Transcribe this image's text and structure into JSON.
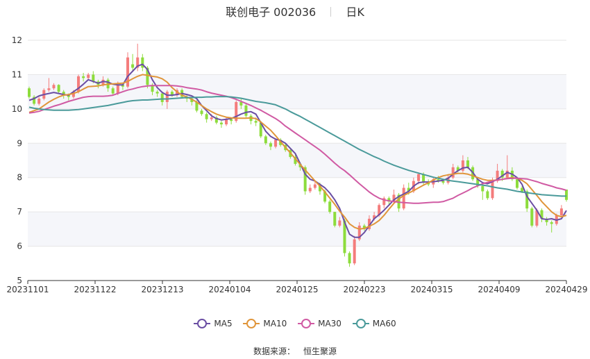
{
  "header": {
    "title": "联创电子 002036",
    "period": "日K"
  },
  "source": {
    "label": "数据来源：",
    "value": "恒生聚源"
  },
  "colors": {
    "up": "#f47c7c",
    "down": "#8ddc3c",
    "grid": "#e6e6e6",
    "bandFill": "#f5f6fa",
    "axis": "#333333"
  },
  "chart_data": {
    "type": "candlestick",
    "ylim": [
      5,
      12
    ],
    "yticks": [
      5,
      6,
      7,
      8,
      9,
      10,
      11,
      12
    ],
    "x_range": [
      "20231101",
      "20240429"
    ],
    "xticks": [
      "20231101",
      "20231122",
      "20231213",
      "20240104",
      "20240125",
      "20240223",
      "20240315",
      "20240409",
      "20240429"
    ],
    "grid": true,
    "legend_position": "bottom",
    "series": [
      {
        "name": "MA5",
        "color": "#6a4ea3",
        "values": [
          10.25,
          10.3,
          10.38,
          10.42,
          10.45,
          10.48,
          10.45,
          10.42,
          10.4,
          10.5,
          10.6,
          10.72,
          10.85,
          10.8,
          10.75,
          10.8,
          10.78,
          10.72,
          10.7,
          10.7,
          10.95,
          11.1,
          11.25,
          11.3,
          11.15,
          10.85,
          10.62,
          10.48,
          10.4,
          10.4,
          10.42,
          10.45,
          10.42,
          10.38,
          10.3,
          10.1,
          9.95,
          9.8,
          9.72,
          9.68,
          9.7,
          9.72,
          9.78,
          9.85,
          9.9,
          9.92,
          9.85,
          9.6,
          9.35,
          9.2,
          9.12,
          9.08,
          9.0,
          8.85,
          8.7,
          8.4,
          8.1,
          7.95,
          7.9,
          7.8,
          7.7,
          7.55,
          7.35,
          7.1,
          6.7,
          6.35,
          6.26,
          6.26,
          6.4,
          6.6,
          6.8,
          6.92,
          7.05,
          7.2,
          7.35,
          7.45,
          7.52,
          7.6,
          7.75,
          7.85,
          7.87,
          7.87,
          7.88,
          7.9,
          7.92,
          7.98,
          8.1,
          8.2,
          8.28,
          8.3,
          8.15,
          7.95,
          7.85,
          7.82,
          7.88,
          7.95,
          8.05,
          8.15,
          8.1,
          8.0,
          7.8,
          7.45,
          7.25,
          7.05,
          6.8,
          6.78,
          6.8,
          6.76,
          6.8,
          7.04
        ]
      },
      {
        "name": "MA10",
        "color": "#e0953a",
        "values": [
          9.9,
          9.95,
          10.0,
          10.1,
          10.2,
          10.28,
          10.35,
          10.4,
          10.42,
          10.45,
          10.5,
          10.58,
          10.65,
          10.66,
          10.67,
          10.7,
          10.72,
          10.73,
          10.74,
          10.75,
          10.8,
          10.88,
          10.95,
          11.0,
          10.98,
          10.95,
          10.93,
          10.88,
          10.78,
          10.62,
          10.5,
          10.4,
          10.35,
          10.28,
          10.2,
          10.1,
          10.0,
          9.92,
          9.85,
          9.8,
          9.76,
          9.74,
          9.73,
          9.73,
          9.73,
          9.74,
          9.72,
          9.62,
          9.5,
          9.38,
          9.22,
          9.05,
          8.88,
          8.72,
          8.55,
          8.38,
          8.22,
          8.06,
          7.9,
          7.75,
          7.58,
          7.4,
          7.22,
          7.02,
          6.85,
          6.65,
          6.55,
          6.5,
          6.52,
          6.58,
          6.65,
          6.75,
          6.9,
          7.08,
          7.25,
          7.38,
          7.48,
          7.55,
          7.62,
          7.7,
          7.78,
          7.85,
          7.93,
          8.0,
          8.05,
          8.08,
          8.1,
          8.12,
          8.12,
          8.1,
          8.05,
          8.0,
          7.95,
          7.92,
          7.92,
          7.93,
          7.95,
          7.98,
          8.0,
          7.98,
          7.92,
          7.82,
          7.65,
          7.48,
          7.3,
          7.15,
          7.0,
          6.9,
          6.86,
          6.9
        ]
      },
      {
        "name": "MA30",
        "color": "#d05aa3",
        "values": [
          9.88,
          9.9,
          9.93,
          9.98,
          10.03,
          10.08,
          10.12,
          10.17,
          10.22,
          10.26,
          10.3,
          10.34,
          10.36,
          10.37,
          10.37,
          10.37,
          10.38,
          10.4,
          10.45,
          10.5,
          10.55,
          10.58,
          10.62,
          10.65,
          10.67,
          10.68,
          10.68,
          10.68,
          10.68,
          10.68,
          10.67,
          10.65,
          10.62,
          10.6,
          10.58,
          10.55,
          10.5,
          10.46,
          10.43,
          10.4,
          10.37,
          10.33,
          10.28,
          10.22,
          10.16,
          10.1,
          10.03,
          9.96,
          9.88,
          9.8,
          9.72,
          9.62,
          9.5,
          9.4,
          9.3,
          9.2,
          9.1,
          9.0,
          8.9,
          8.8,
          8.68,
          8.55,
          8.42,
          8.3,
          8.2,
          8.08,
          7.95,
          7.82,
          7.7,
          7.58,
          7.48,
          7.4,
          7.35,
          7.32,
          7.3,
          7.28,
          7.27,
          7.26,
          7.25,
          7.25,
          7.26,
          7.27,
          7.28,
          7.28,
          7.3,
          7.35,
          7.4,
          7.48,
          7.55,
          7.62,
          7.7,
          7.76,
          7.82,
          7.86,
          7.9,
          7.93,
          7.95,
          7.97,
          7.98,
          7.98,
          7.97,
          7.96,
          7.92,
          7.88,
          7.83,
          7.79,
          7.75,
          7.7,
          7.67,
          7.63
        ]
      },
      {
        "name": "MA60",
        "color": "#4a9a9a",
        "values": [
          10.05,
          10.02,
          10.0,
          9.98,
          9.97,
          9.96,
          9.96,
          9.96,
          9.96,
          9.97,
          9.98,
          10.0,
          10.02,
          10.04,
          10.06,
          10.08,
          10.1,
          10.13,
          10.16,
          10.19,
          10.22,
          10.24,
          10.25,
          10.26,
          10.26,
          10.27,
          10.28,
          10.29,
          10.29,
          10.3,
          10.31,
          10.32,
          10.33,
          10.33,
          10.34,
          10.34,
          10.35,
          10.35,
          10.36,
          10.36,
          10.36,
          10.35,
          10.33,
          10.31,
          10.28,
          10.25,
          10.22,
          10.2,
          10.18,
          10.15,
          10.12,
          10.06,
          10.0,
          9.92,
          9.85,
          9.78,
          9.7,
          9.62,
          9.54,
          9.46,
          9.38,
          9.3,
          9.22,
          9.14,
          9.06,
          8.98,
          8.9,
          8.82,
          8.75,
          8.68,
          8.61,
          8.55,
          8.48,
          8.42,
          8.36,
          8.31,
          8.26,
          8.21,
          8.17,
          8.13,
          8.09,
          8.05,
          8.01,
          7.98,
          7.95,
          7.92,
          7.9,
          7.88,
          7.86,
          7.84,
          7.82,
          7.8,
          7.78,
          7.76,
          7.73,
          7.7,
          7.68,
          7.66,
          7.63,
          7.6,
          7.58,
          7.56,
          7.54,
          7.52,
          7.5,
          7.49,
          7.48,
          7.47,
          7.46,
          7.46
        ]
      }
    ],
    "candles": [
      [
        10.6,
        10.35,
        10.65,
        10.3
      ],
      [
        10.35,
        10.15,
        10.4,
        10.1
      ],
      [
        10.15,
        10.3,
        10.35,
        10.1
      ],
      [
        10.3,
        10.55,
        10.6,
        10.25
      ],
      [
        10.55,
        10.6,
        10.9,
        10.5
      ],
      [
        10.6,
        10.7,
        10.75,
        10.55
      ],
      [
        10.7,
        10.5,
        10.72,
        10.45
      ],
      [
        10.5,
        10.4,
        10.55,
        10.3
      ],
      [
        10.4,
        10.35,
        10.45,
        10.25
      ],
      [
        10.35,
        10.5,
        10.55,
        10.3
      ],
      [
        10.5,
        10.95,
        11.0,
        10.45
      ],
      [
        10.95,
        10.9,
        11.05,
        10.8
      ],
      [
        10.9,
        11.0,
        11.05,
        10.85
      ],
      [
        11.0,
        10.8,
        11.1,
        10.75
      ],
      [
        10.8,
        10.7,
        10.85,
        10.6
      ],
      [
        10.7,
        10.85,
        10.95,
        10.65
      ],
      [
        10.85,
        10.6,
        10.9,
        10.5
      ],
      [
        10.6,
        10.45,
        10.65,
        10.4
      ],
      [
        10.45,
        10.7,
        10.8,
        10.4
      ],
      [
        10.7,
        10.65,
        10.75,
        10.55
      ],
      [
        10.65,
        11.5,
        11.65,
        10.6
      ],
      [
        11.3,
        11.2,
        11.6,
        11.1
      ],
      [
        11.2,
        11.5,
        11.9,
        11.1
      ],
      [
        11.5,
        11.2,
        11.6,
        11.1
      ],
      [
        11.2,
        10.7,
        11.25,
        10.6
      ],
      [
        10.7,
        10.5,
        10.75,
        10.4
      ],
      [
        10.5,
        10.45,
        10.55,
        10.35
      ],
      [
        10.45,
        10.2,
        10.5,
        10.1
      ],
      [
        10.2,
        10.5,
        10.55,
        10.0
      ],
      [
        10.5,
        10.4,
        10.55,
        10.35
      ],
      [
        10.4,
        10.55,
        10.6,
        10.35
      ],
      [
        10.55,
        10.35,
        10.6,
        10.3
      ],
      [
        10.35,
        10.3,
        10.4,
        10.2
      ],
      [
        10.3,
        10.2,
        10.35,
        10.1
      ],
      [
        10.2,
        9.95,
        10.25,
        9.9
      ],
      [
        9.95,
        9.85,
        10.0,
        9.8
      ],
      [
        9.85,
        9.7,
        9.9,
        9.6
      ],
      [
        9.7,
        9.75,
        9.85,
        9.65
      ],
      [
        9.75,
        9.6,
        9.8,
        9.55
      ],
      [
        9.6,
        9.55,
        9.65,
        9.45
      ],
      [
        9.55,
        9.7,
        9.75,
        9.5
      ],
      [
        9.7,
        9.65,
        9.75,
        9.55
      ],
      [
        9.65,
        10.2,
        10.25,
        9.6
      ],
      [
        10.2,
        10.1,
        10.3,
        10.0
      ],
      [
        10.1,
        9.8,
        10.15,
        9.75
      ],
      [
        9.8,
        9.65,
        9.85,
        9.55
      ],
      [
        9.65,
        9.6,
        9.75,
        9.5
      ],
      [
        9.6,
        9.2,
        9.65,
        9.15
      ],
      [
        9.2,
        9.0,
        9.25,
        8.95
      ],
      [
        9.0,
        8.9,
        9.05,
        8.8
      ],
      [
        8.9,
        9.1,
        9.15,
        8.85
      ],
      [
        9.1,
        8.95,
        9.15,
        8.9
      ],
      [
        8.95,
        8.8,
        9.0,
        8.75
      ],
      [
        8.8,
        8.6,
        8.85,
        8.55
      ],
      [
        8.6,
        8.4,
        8.7,
        8.35
      ],
      [
        8.4,
        8.3,
        8.45,
        8.2
      ],
      [
        8.3,
        7.6,
        8.35,
        7.5
      ],
      [
        7.6,
        7.7,
        7.8,
        7.55
      ],
      [
        7.7,
        7.8,
        7.9,
        7.65
      ],
      [
        7.8,
        7.6,
        7.85,
        7.5
      ],
      [
        7.6,
        7.3,
        7.65,
        7.25
      ],
      [
        7.3,
        7.0,
        7.35,
        6.95
      ],
      [
        7.0,
        6.6,
        7.0,
        6.55
      ],
      [
        6.6,
        6.75,
        6.85,
        6.55
      ],
      [
        6.75,
        5.8,
        6.8,
        5.7
      ],
      [
        5.8,
        5.5,
        5.85,
        5.4
      ],
      [
        5.5,
        6.2,
        6.3,
        5.45
      ],
      [
        6.2,
        6.6,
        6.7,
        6.15
      ],
      [
        6.6,
        6.5,
        6.65,
        6.45
      ],
      [
        6.5,
        6.8,
        6.9,
        6.45
      ],
      [
        6.8,
        6.9,
        7.0,
        6.75
      ],
      [
        6.9,
        7.2,
        7.25,
        6.85
      ],
      [
        7.2,
        7.4,
        7.45,
        7.1
      ],
      [
        7.4,
        7.3,
        7.45,
        7.2
      ],
      [
        7.3,
        7.5,
        7.65,
        7.25
      ],
      [
        7.5,
        7.1,
        7.55,
        7.0
      ],
      [
        7.1,
        7.7,
        7.8,
        7.05
      ],
      [
        7.7,
        7.6,
        7.85,
        7.5
      ],
      [
        7.6,
        7.9,
        8.0,
        7.55
      ],
      [
        7.9,
        8.1,
        8.15,
        7.8
      ],
      [
        8.1,
        7.85,
        8.15,
        7.8
      ],
      [
        7.85,
        7.8,
        7.95,
        7.75
      ],
      [
        7.8,
        7.95,
        8.0,
        7.7
      ],
      [
        7.95,
        7.9,
        8.05,
        7.85
      ],
      [
        7.9,
        7.85,
        7.95,
        7.8
      ],
      [
        7.85,
        8.0,
        8.1,
        7.8
      ],
      [
        8.0,
        8.3,
        8.4,
        7.95
      ],
      [
        8.3,
        8.2,
        8.35,
        8.15
      ],
      [
        8.2,
        8.5,
        8.65,
        8.15
      ],
      [
        8.5,
        8.3,
        8.6,
        8.25
      ],
      [
        8.3,
        7.95,
        8.35,
        7.9
      ],
      [
        7.95,
        7.75,
        8.0,
        7.7
      ],
      [
        7.75,
        7.6,
        7.8,
        7.35
      ],
      [
        7.6,
        7.4,
        7.65,
        7.35
      ],
      [
        7.4,
        7.9,
        8.0,
        7.35
      ],
      [
        7.9,
        8.2,
        8.4,
        7.85
      ],
      [
        8.2,
        8.0,
        8.25,
        7.9
      ],
      [
        8.0,
        8.2,
        8.65,
        7.95
      ],
      [
        8.2,
        7.95,
        8.3,
        7.9
      ],
      [
        7.95,
        7.7,
        8.0,
        7.65
      ],
      [
        7.7,
        7.6,
        7.75,
        7.55
      ],
      [
        7.6,
        7.1,
        7.65,
        7.0
      ],
      [
        7.1,
        6.6,
        7.15,
        6.55
      ],
      [
        6.6,
        7.05,
        7.1,
        6.55
      ],
      [
        7.05,
        6.8,
        7.1,
        6.7
      ],
      [
        6.8,
        6.7,
        6.85,
        6.6
      ],
      [
        6.7,
        6.65,
        6.75,
        6.4
      ],
      [
        6.65,
        6.9,
        6.95,
        6.6
      ],
      [
        6.9,
        7.1,
        7.2,
        6.85
      ],
      [
        7.65,
        7.35,
        7.65,
        7.3
      ]
    ]
  }
}
